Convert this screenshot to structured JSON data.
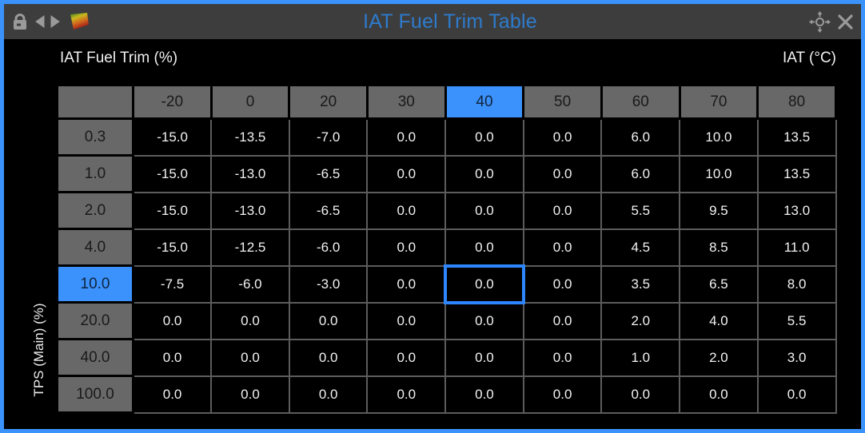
{
  "window": {
    "title": "IAT Fuel Trim Table"
  },
  "titlebar": {
    "icons_left": [
      "lock-icon",
      "prev-arrow-icon",
      "next-arrow-icon",
      "table-map-icon"
    ],
    "icons_right": [
      "move-icon",
      "close-icon"
    ]
  },
  "labels": {
    "value_axis": "IAT Fuel Trim (%)",
    "col_axis": "IAT (°C)",
    "row_axis": "TPS (Main) (%)"
  },
  "chart_data": {
    "type": "table",
    "title": "IAT Fuel Trim Table",
    "xlabel": "IAT (°C)",
    "ylabel": "TPS (Main) (%)",
    "value_label": "IAT Fuel Trim (%)",
    "col_headers": [
      -20,
      0,
      20,
      30,
      40,
      50,
      60,
      70,
      80
    ],
    "row_headers": [
      0.3,
      1.0,
      2.0,
      4.0,
      10.0,
      20.0,
      40.0,
      100.0
    ],
    "rows": [
      [
        -15.0,
        -13.5,
        -7.0,
        0.0,
        0.0,
        0.0,
        6.0,
        10.0,
        13.5
      ],
      [
        -15.0,
        -13.0,
        -6.5,
        0.0,
        0.0,
        0.0,
        6.0,
        10.0,
        13.5
      ],
      [
        -15.0,
        -13.0,
        -6.5,
        0.0,
        0.0,
        0.0,
        5.5,
        9.5,
        13.0
      ],
      [
        -15.0,
        -12.5,
        -6.0,
        0.0,
        0.0,
        0.0,
        4.5,
        8.5,
        11.0
      ],
      [
        -7.5,
        -6.0,
        -3.0,
        0.0,
        0.0,
        0.0,
        3.5,
        6.5,
        8.0
      ],
      [
        0.0,
        0.0,
        0.0,
        0.0,
        0.0,
        0.0,
        2.0,
        4.0,
        5.5
      ],
      [
        0.0,
        0.0,
        0.0,
        0.0,
        0.0,
        0.0,
        1.0,
        2.0,
        3.0
      ],
      [
        0.0,
        0.0,
        0.0,
        0.0,
        0.0,
        0.0,
        0.0,
        0.0,
        0.0
      ]
    ]
  },
  "selection": {
    "row_index": 4,
    "col_index": 4,
    "row_label": "10.0",
    "col_label": "40",
    "value": "0.0"
  },
  "colors": {
    "window_border": "#3b92fa",
    "titlebar_bg": "#3d3d3d",
    "title_text": "#2e7bcc",
    "header_bg": "#686868",
    "header_selected_bg": "#3b92fc",
    "cell_bg": "#000000",
    "cell_text": "#f2f2f2",
    "grid_line": "#5c5c5c",
    "selection_border": "#2e86ff"
  }
}
